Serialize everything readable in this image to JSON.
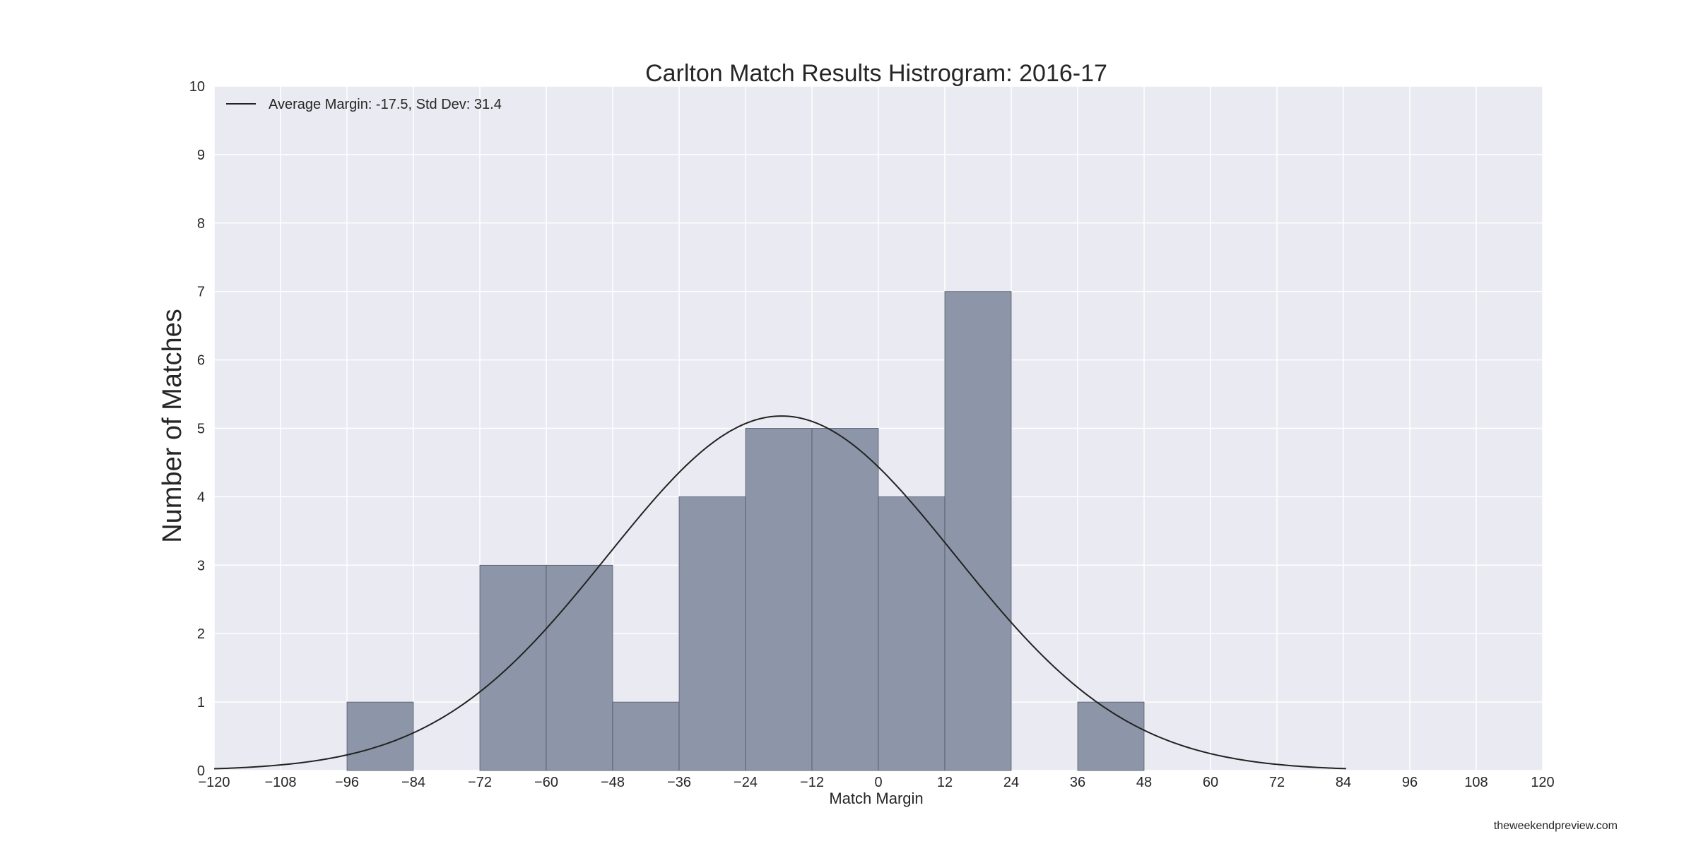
{
  "chart_data": {
    "type": "bar",
    "title": "Carlton Match Results Histrogram: 2016-17",
    "xlabel": "Match Margin",
    "ylabel": "Number of Matches",
    "xlim": [
      -120,
      120
    ],
    "ylim": [
      0,
      10
    ],
    "x_ticks": [
      -120,
      -108,
      -96,
      -84,
      -72,
      -60,
      -48,
      -36,
      -24,
      -12,
      0,
      12,
      24,
      36,
      48,
      60,
      72,
      84,
      96,
      108,
      120
    ],
    "x_tick_labels": [
      "−120",
      "−108",
      "−96",
      "−84",
      "−72",
      "−60",
      "−48",
      "−36",
      "−24",
      "−12",
      "0",
      "12",
      "24",
      "36",
      "48",
      "60",
      "72",
      "84",
      "96",
      "108",
      "120"
    ],
    "y_ticks": [
      0,
      1,
      2,
      3,
      4,
      5,
      6,
      7,
      8,
      9,
      10
    ],
    "y_tick_labels": [
      "0",
      "1",
      "2",
      "3",
      "4",
      "5",
      "6",
      "7",
      "8",
      "9",
      "10"
    ],
    "bins": [
      {
        "start": -96,
        "end": -84,
        "count": 1
      },
      {
        "start": -84,
        "end": -72,
        "count": 0
      },
      {
        "start": -72,
        "end": -60,
        "count": 3
      },
      {
        "start": -60,
        "end": -48,
        "count": 3
      },
      {
        "start": -48,
        "end": -36,
        "count": 1
      },
      {
        "start": -36,
        "end": -24,
        "count": 4
      },
      {
        "start": -24,
        "end": -12,
        "count": 5
      },
      {
        "start": -12,
        "end": 0,
        "count": 5
      },
      {
        "start": 0,
        "end": 12,
        "count": 4
      },
      {
        "start": 12,
        "end": 24,
        "count": 7
      },
      {
        "start": 24,
        "end": 36,
        "count": 0
      },
      {
        "start": 36,
        "end": 48,
        "count": 1
      }
    ],
    "curve": {
      "type": "normal",
      "label": "Average Margin: -17.5, Std Dev: 31.4",
      "mean": -17.5,
      "std": 31.4,
      "x_range": [
        -120,
        84.5
      ],
      "peak": 5.18
    },
    "legend_position": "top-left",
    "grid": true,
    "colors": {
      "plot_background": "#EAEAF2",
      "bar_fill": "#8D96A8",
      "bar_edge": "#4E5567",
      "curve": "#222222",
      "grid": "#FFFFFF"
    }
  },
  "credit": "theweekendpreview.com"
}
